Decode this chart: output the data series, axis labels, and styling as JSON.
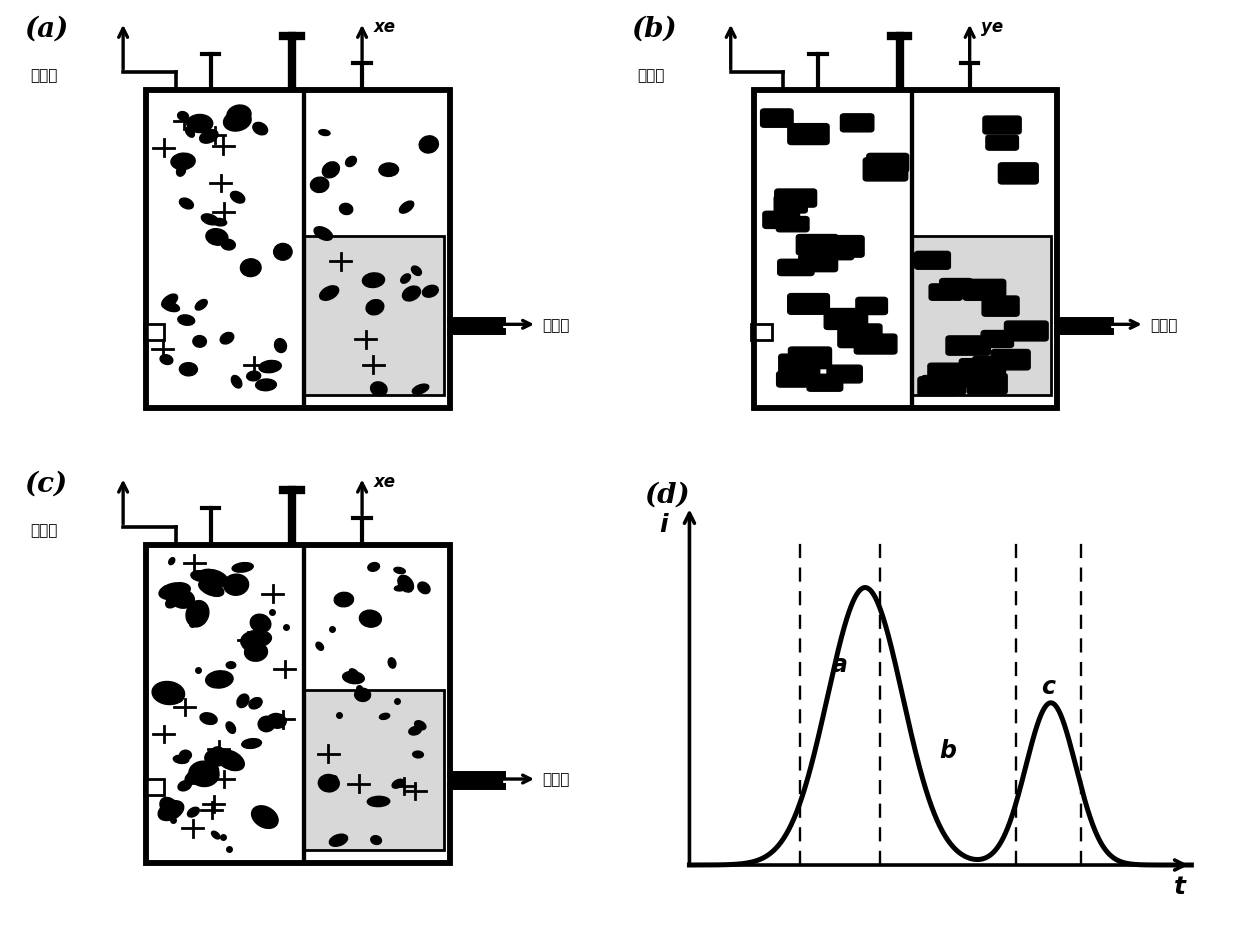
{
  "bg_color": "#ffffff",
  "line_color": "#000000",
  "lw_main": 2.0,
  "lw_thick": 6.0,
  "font_size_panel": 20,
  "font_size_chinese": 11,
  "font_size_axis": 15,
  "chinese_outlet": "出样口",
  "chinese_inlet": "进样口",
  "re_label_a": "xe",
  "re_label_b": "ye",
  "re_label_c": "xe",
  "i_label": "i",
  "t_label": "t"
}
